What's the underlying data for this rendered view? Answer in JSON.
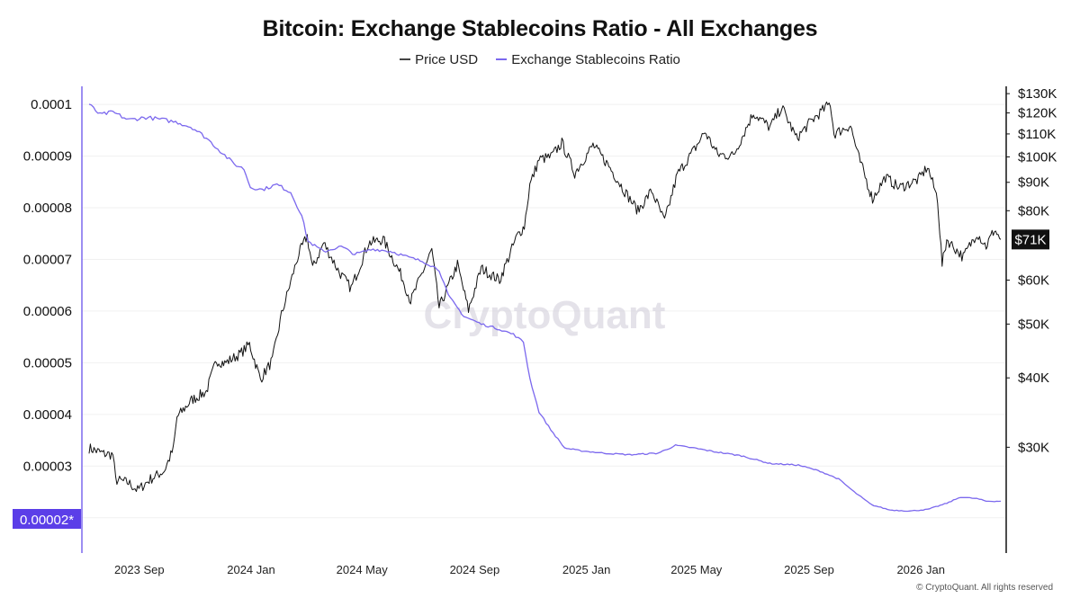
{
  "chart_data": {
    "type": "line",
    "title": "Bitcoin: Exchange Stablecoins Ratio - All Exchanges",
    "legend": [
      "Price USD",
      "Exchange Stablecoins Ratio"
    ],
    "legend_position": "top-center",
    "colors": {
      "price": "#111111",
      "ratio": "#7b68ee",
      "highlight_bg": "#5b3ee8",
      "last_price_bg": "#111111"
    },
    "x_ticks": [
      "2023 Sep",
      "2024 Jan",
      "2024 May",
      "2024 Sep",
      "2025 Jan",
      "2025 May",
      "2025 Sep",
      "2026 Jan"
    ],
    "x_range": [
      "2023-07-20",
      "2026-04-10"
    ],
    "left_axis": {
      "label": "Exchange Stablecoins Ratio",
      "ylim": [
        1.7e-05,
        0.0001035
      ],
      "ticks": [
        "0.0001",
        "0.00009",
        "0.00008",
        "0.00007",
        "0.00006",
        "0.00005",
        "0.00004",
        "0.00003",
        "0.00002"
      ],
      "tick_values": [
        0.0001,
        9e-05,
        8e-05,
        7e-05,
        6e-05,
        5e-05,
        4e-05,
        3e-05,
        2e-05
      ],
      "current_label": "0.00002*"
    },
    "right_axis": {
      "label": "Price USD",
      "scale": "log",
      "ylim": [
        21000,
        134000
      ],
      "ticks": [
        "$130K",
        "$120K",
        "$110K",
        "$100K",
        "$90K",
        "$80K",
        "$60K",
        "$50K",
        "$40K",
        "$30K"
      ],
      "tick_values": [
        130000,
        120000,
        110000,
        100000,
        90000,
        80000,
        60000,
        50000,
        40000,
        30000
      ],
      "current_label": "$71K",
      "current_value": 71000
    },
    "series": [
      {
        "name": "Price USD",
        "axis": "right",
        "points": [
          [
            "2023-07-20",
            29900
          ],
          [
            "2023-08-05",
            29200
          ],
          [
            "2023-08-15",
            29100
          ],
          [
            "2023-08-18",
            26200
          ],
          [
            "2023-09-01",
            25900
          ],
          [
            "2023-09-11",
            25100
          ],
          [
            "2023-09-25",
            26300
          ],
          [
            "2023-10-10",
            27200
          ],
          [
            "2023-10-20",
            29800
          ],
          [
            "2023-10-24",
            34000
          ],
          [
            "2023-11-09",
            36500
          ],
          [
            "2023-11-25",
            37800
          ],
          [
            "2023-12-06",
            43000
          ],
          [
            "2023-12-15",
            42500
          ],
          [
            "2024-01-01",
            44200
          ],
          [
            "2024-01-11",
            46000
          ],
          [
            "2024-01-23",
            39800
          ],
          [
            "2024-02-05",
            43000
          ],
          [
            "2024-02-15",
            52000
          ],
          [
            "2024-02-28",
            62000
          ],
          [
            "2024-03-05",
            67000
          ],
          [
            "2024-03-14",
            72000
          ],
          [
            "2024-03-20",
            63000
          ],
          [
            "2024-04-01",
            70000
          ],
          [
            "2024-04-18",
            62000
          ],
          [
            "2024-05-01",
            58000
          ],
          [
            "2024-05-20",
            70000
          ],
          [
            "2024-06-05",
            71000
          ],
          [
            "2024-06-25",
            61000
          ],
          [
            "2024-07-05",
            55000
          ],
          [
            "2024-07-28",
            68000
          ],
          [
            "2024-08-05",
            53500
          ],
          [
            "2024-08-25",
            64000
          ],
          [
            "2024-09-06",
            53000
          ],
          [
            "2024-09-20",
            63000
          ],
          [
            "2024-10-10",
            60000
          ],
          [
            "2024-10-29",
            72000
          ],
          [
            "2024-11-06",
            75000
          ],
          [
            "2024-11-12",
            89000
          ],
          [
            "2024-11-22",
            99000
          ],
          [
            "2024-12-05",
            100000
          ],
          [
            "2024-12-17",
            106000
          ],
          [
            "2024-12-31",
            93500
          ],
          [
            "2025-01-20",
            105000
          ],
          [
            "2025-02-05",
            97000
          ],
          [
            "2025-02-25",
            86000
          ],
          [
            "2025-03-10",
            80000
          ],
          [
            "2025-03-25",
            87000
          ],
          [
            "2025-04-08",
            76500
          ],
          [
            "2025-04-22",
            93000
          ],
          [
            "2025-05-12",
            104000
          ],
          [
            "2025-05-22",
            111000
          ],
          [
            "2025-06-05",
            101000
          ],
          [
            "2025-06-22",
            100500
          ],
          [
            "2025-07-14",
            120000
          ],
          [
            "2025-08-01",
            113000
          ],
          [
            "2025-08-14",
            123000
          ],
          [
            "2025-08-30",
            108000
          ],
          [
            "2025-09-15",
            116000
          ],
          [
            "2025-10-06",
            125000
          ],
          [
            "2025-10-10",
            110000
          ],
          [
            "2025-10-28",
            114000
          ],
          [
            "2025-11-05",
            101000
          ],
          [
            "2025-11-21",
            84000
          ],
          [
            "2025-12-05",
            92000
          ],
          [
            "2025-12-20",
            88000
          ],
          [
            "2026-01-10",
            91000
          ],
          [
            "2026-01-20",
            96000
          ],
          [
            "2026-01-31",
            84000
          ],
          [
            "2026-02-05",
            64000
          ],
          [
            "2026-02-10",
            71000
          ],
          [
            "2026-02-28",
            66000
          ],
          [
            "2026-03-15",
            73000
          ],
          [
            "2026-03-25",
            69000
          ],
          [
            "2026-04-03",
            74000
          ],
          [
            "2026-04-10",
            71000
          ]
        ]
      },
      {
        "name": "Exchange Stablecoins Ratio",
        "axis": "left",
        "points": [
          [
            "2023-07-20",
            0.0001
          ],
          [
            "2023-08-01",
            9.8e-05
          ],
          [
            "2023-08-15",
            9.85e-05
          ],
          [
            "2023-09-01",
            9.7e-05
          ],
          [
            "2023-09-20",
            9.75e-05
          ],
          [
            "2023-10-10",
            9.7e-05
          ],
          [
            "2023-10-25",
            9.65e-05
          ],
          [
            "2023-11-10",
            9.55e-05
          ],
          [
            "2023-11-25",
            9.35e-05
          ],
          [
            "2023-12-10",
            9.1e-05
          ],
          [
            "2023-12-25",
            8.85e-05
          ],
          [
            "2024-01-05",
            8.75e-05
          ],
          [
            "2024-01-12",
            8.4e-05
          ],
          [
            "2024-01-25",
            8.35e-05
          ],
          [
            "2024-02-10",
            8.45e-05
          ],
          [
            "2024-02-25",
            8.3e-05
          ],
          [
            "2024-03-08",
            7.85e-05
          ],
          [
            "2024-03-15",
            7.35e-05
          ],
          [
            "2024-04-01",
            7.15e-05
          ],
          [
            "2024-04-20",
            7.25e-05
          ],
          [
            "2024-05-05",
            7.1e-05
          ],
          [
            "2024-05-25",
            7.2e-05
          ],
          [
            "2024-06-15",
            7.15e-05
          ],
          [
            "2024-07-01",
            7.05e-05
          ],
          [
            "2024-07-20",
            6.95e-05
          ],
          [
            "2024-08-05",
            6.8e-05
          ],
          [
            "2024-08-15",
            6.3e-05
          ],
          [
            "2024-09-01",
            5.9e-05
          ],
          [
            "2024-09-20",
            5.75e-05
          ],
          [
            "2024-10-10",
            5.65e-05
          ],
          [
            "2024-10-25",
            5.55e-05
          ],
          [
            "2024-11-05",
            5.4e-05
          ],
          [
            "2024-11-12",
            4.7e-05
          ],
          [
            "2024-11-22",
            4.05e-05
          ],
          [
            "2024-12-05",
            3.7e-05
          ],
          [
            "2024-12-20",
            3.35e-05
          ],
          [
            "2025-01-05",
            3.3e-05
          ],
          [
            "2025-02-01",
            3.25e-05
          ],
          [
            "2025-03-01",
            3.22e-05
          ],
          [
            "2025-04-01",
            3.25e-05
          ],
          [
            "2025-04-20",
            3.4e-05
          ],
          [
            "2025-05-10",
            3.35e-05
          ],
          [
            "2025-06-01",
            3.28e-05
          ],
          [
            "2025-07-01",
            3.2e-05
          ],
          [
            "2025-08-01",
            3.05e-05
          ],
          [
            "2025-09-01",
            3.02e-05
          ],
          [
            "2025-09-25",
            2.9e-05
          ],
          [
            "2025-10-15",
            2.75e-05
          ],
          [
            "2025-11-01",
            2.5e-05
          ],
          [
            "2025-11-20",
            2.25e-05
          ],
          [
            "2025-12-10",
            2.15e-05
          ],
          [
            "2026-01-01",
            2.13e-05
          ],
          [
            "2026-01-20",
            2.16e-05
          ],
          [
            "2026-02-10",
            2.28e-05
          ],
          [
            "2026-02-25",
            2.4e-05
          ],
          [
            "2026-03-15",
            2.37e-05
          ],
          [
            "2026-03-25",
            2.32e-05
          ],
          [
            "2026-04-10",
            2.32e-05
          ]
        ]
      }
    ],
    "watermark": "CryptoQuant",
    "copyright": "© CryptoQuant. All rights reserved"
  }
}
